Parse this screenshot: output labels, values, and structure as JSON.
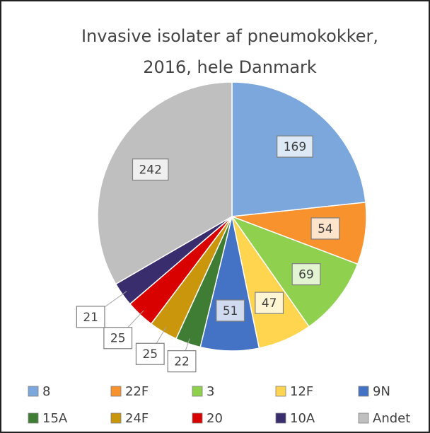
{
  "chart_data": {
    "type": "pie",
    "title": [
      "Invasive isolater af pneumokokker,",
      "2016, hele Danmark"
    ],
    "categories": [
      "8",
      "22F",
      "3",
      "12F",
      "9N",
      "15A",
      "24F",
      "20",
      "10A",
      "Andet"
    ],
    "values": [
      169,
      54,
      69,
      47,
      51,
      22,
      25,
      25,
      21,
      242
    ],
    "colors": [
      "#7ba7dc",
      "#f7922c",
      "#8fd14f",
      "#ffd54f",
      "#4472c4",
      "#3f7d35",
      "#c9960c",
      "#d90000",
      "#3a2d6e",
      "#bfbfbf"
    ],
    "legend": "bottom"
  }
}
